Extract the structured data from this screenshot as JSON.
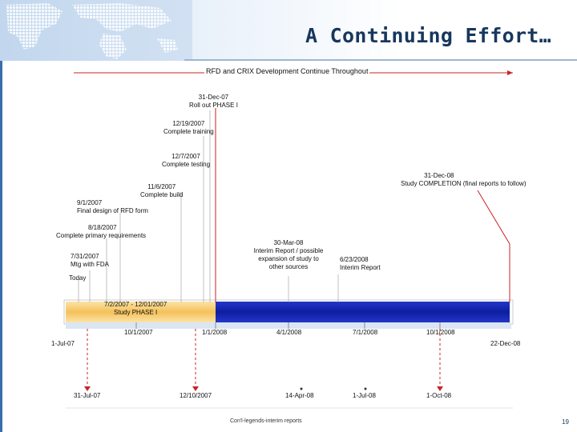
{
  "header": {
    "title": "A Continuing Effort…"
  },
  "timeline": {
    "banner": "RFD and CRIX Development Continue Throughout",
    "start_label": "1-Jul-07",
    "end_label": "22-Dec-08",
    "axis_ticks": [
      "10/1/2007",
      "1/1/2008",
      "4/1/2008",
      "7/1/2008",
      "10/1/2008"
    ],
    "phase": {
      "dates": "7/2/2007 - 12/01/2007",
      "name": "Study PHASE I"
    },
    "upper_milestones": [
      {
        "date": "31-Dec-07",
        "text": "Roll out PHASE I"
      },
      {
        "date": "12/19/2007",
        "text": "Complete training"
      },
      {
        "date": "12/7/2007",
        "text": "Complete testing"
      },
      {
        "date": "11/6/2007",
        "text": "Complete build"
      },
      {
        "date": "9/1/2007",
        "text": "Final design of RFD form"
      },
      {
        "date": "8/18/2007",
        "text": "Complete primary requirements"
      },
      {
        "date": "7/31/2007",
        "text": "Mtg with FDA"
      },
      {
        "date": "Today",
        "text": ""
      },
      {
        "date": "31-Dec-08",
        "text": "Study COMPLETION (final reports to follow)"
      },
      {
        "date": "30-Mar-08",
        "text": "Interim Report / possible expansion of study to other sources"
      },
      {
        "date": "6/23/2008",
        "text": "Interim Report"
      }
    ],
    "lower_dates": [
      "31-Jul-07",
      "12/10/2007",
      "14-Apr-08",
      "1-Jul-08",
      "1-Oct-08"
    ],
    "legend": "Con'l-legends-interim reports"
  },
  "colors": {
    "title": "#17375e",
    "phase1": "#f5c15a",
    "phase2": "#1a2fb8",
    "marker": "#cc2222"
  },
  "footer": {
    "page_number": "19"
  }
}
